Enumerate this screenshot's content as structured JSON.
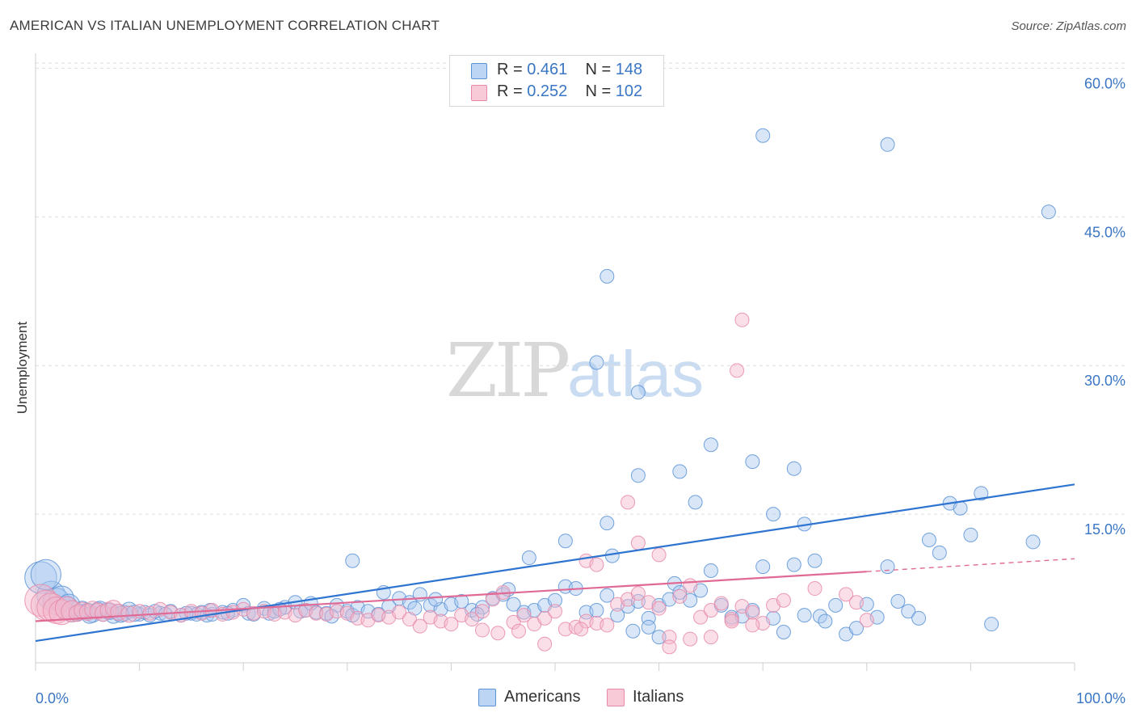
{
  "title": "AMERICAN VS ITALIAN UNEMPLOYMENT CORRELATION CHART",
  "source": "Source: ZipAtlas.com",
  "watermark": {
    "zip": "ZIP",
    "atlas": "atlas"
  },
  "legend": {
    "rows": [
      {
        "r_label": "R =",
        "r_value": "0.461",
        "n_label": "N =",
        "n_value": "148"
      },
      {
        "r_label": "R =",
        "r_value": "0.252",
        "n_label": "N =",
        "n_value": "102"
      }
    ]
  },
  "bottom_legend": [
    "Americans",
    "Italians"
  ],
  "colors": {
    "americans_fill": "#a9c8f0",
    "americans_stroke": "#5b93d6",
    "americans_line": "#2f74d0",
    "italians_fill": "#f5b8cb",
    "italians_stroke": "#e889a8",
    "italians_line": "#e06a96",
    "grid": "#dcdcdc",
    "axis_label": "#3a76c4"
  },
  "chart_data": {
    "type": "scatter",
    "title": "AMERICAN VS ITALIAN UNEMPLOYMENT CORRELATION CHART",
    "xlabel": "",
    "ylabel": "Unemployment",
    "xlim": [
      0,
      100
    ],
    "ylim": [
      0,
      61.5
    ],
    "x_tick_labels": [
      "0.0%",
      "100.0%"
    ],
    "y_ticks": [
      15,
      30,
      45,
      60
    ],
    "y_tick_labels": [
      "15.0%",
      "30.0%",
      "45.0%",
      "60.0%"
    ],
    "grid": "horizontal dashed",
    "series": [
      {
        "name": "Americans",
        "R": 0.461,
        "N": 148,
        "trend": {
          "x0": 0,
          "y0": 2.2,
          "x1": 100,
          "y1": 18.0
        },
        "points": [
          [
            0.5,
            8.6
          ],
          [
            1.5,
            6.8
          ],
          [
            2,
            6.2
          ],
          [
            3,
            5.6
          ],
          [
            3.5,
            5.2
          ],
          [
            4,
            5.0
          ],
          [
            4.5,
            5.4
          ],
          [
            5,
            5.2
          ],
          [
            5.5,
            4.9
          ],
          [
            6,
            5.3
          ],
          [
            6.5,
            5.0
          ],
          [
            7,
            5.2
          ],
          [
            7.5,
            4.8
          ],
          [
            8,
            5.1
          ],
          [
            8.5,
            5.0
          ],
          [
            9,
            5.3
          ],
          [
            10,
            4.9
          ],
          [
            10.5,
            5.1
          ],
          [
            11,
            4.8
          ],
          [
            12,
            5.0
          ],
          [
            13,
            5.2
          ],
          [
            14,
            4.8
          ],
          [
            15,
            5.0
          ],
          [
            15.5,
            4.9
          ],
          [
            16,
            5.1
          ],
          [
            16.5,
            4.8
          ],
          [
            17,
            4.9
          ],
          [
            18,
            5.1
          ],
          [
            19,
            5.3
          ],
          [
            20,
            5.8
          ],
          [
            20.5,
            5.0
          ],
          [
            21,
            4.9
          ],
          [
            22,
            5.5
          ],
          [
            22.5,
            5.0
          ],
          [
            23,
            5.2
          ],
          [
            24,
            5.6
          ],
          [
            25,
            6.1
          ],
          [
            25.5,
            5.2
          ],
          [
            26,
            5.3
          ],
          [
            27,
            5.1
          ],
          [
            28,
            5.0
          ],
          [
            29,
            5.8
          ],
          [
            30,
            5.2
          ],
          [
            30.5,
            4.8
          ],
          [
            31,
            5.6
          ],
          [
            32,
            5.2
          ],
          [
            33,
            4.9
          ],
          [
            34,
            5.7
          ],
          [
            35,
            6.5
          ],
          [
            36,
            6.1
          ],
          [
            37,
            6.9
          ],
          [
            38,
            5.8
          ],
          [
            39,
            5.4
          ],
          [
            40,
            5.9
          ],
          [
            41,
            6.2
          ],
          [
            42,
            5.3
          ],
          [
            43,
            5.6
          ],
          [
            44,
            6.5
          ],
          [
            45,
            6.9
          ],
          [
            45.5,
            7.4
          ],
          [
            46,
            5.9
          ],
          [
            47,
            5.1
          ],
          [
            48,
            5.3
          ],
          [
            49,
            5.8
          ],
          [
            50,
            6.3
          ],
          [
            51,
            7.7
          ],
          [
            52,
            7.5
          ],
          [
            53,
            5.1
          ],
          [
            54,
            5.3
          ],
          [
            55,
            6.8
          ],
          [
            56,
            4.8
          ],
          [
            57,
            5.7
          ],
          [
            58,
            6.2
          ],
          [
            59,
            4.5
          ],
          [
            60,
            5.8
          ],
          [
            61,
            6.4
          ],
          [
            61.5,
            8.0
          ],
          [
            62,
            7.1
          ],
          [
            63,
            6.3
          ],
          [
            64,
            7.3
          ],
          [
            65,
            9.3
          ],
          [
            66,
            5.8
          ],
          [
            67,
            4.6
          ],
          [
            68,
            4.7
          ],
          [
            69,
            5.3
          ],
          [
            70,
            9.7
          ],
          [
            71,
            4.5
          ],
          [
            72,
            3.1
          ],
          [
            73,
            9.9
          ],
          [
            74,
            4.8
          ],
          [
            75,
            10.3
          ],
          [
            75.5,
            4.7
          ],
          [
            76,
            4.2
          ],
          [
            77,
            5.8
          ],
          [
            78,
            2.9
          ],
          [
            79,
            3.5
          ],
          [
            80,
            5.9
          ],
          [
            81,
            4.6
          ],
          [
            82,
            9.7
          ],
          [
            83,
            6.2
          ],
          [
            84,
            5.2
          ],
          [
            85,
            4.5
          ],
          [
            86,
            12.4
          ],
          [
            87,
            11.1
          ],
          [
            88,
            16.1
          ],
          [
            89,
            15.6
          ],
          [
            90,
            12.9
          ],
          [
            91,
            17.1
          ],
          [
            92,
            3.9
          ],
          [
            96,
            12.2
          ],
          [
            58,
            18.9
          ],
          [
            62,
            19.3
          ],
          [
            63.5,
            16.2
          ],
          [
            65,
            22.0
          ],
          [
            69,
            20.3
          ],
          [
            71,
            15.0
          ],
          [
            73,
            19.6
          ],
          [
            74,
            14.0
          ],
          [
            47.5,
            10.6
          ],
          [
            55,
            14.1
          ],
          [
            51,
            12.3
          ],
          [
            55.5,
            10.8
          ],
          [
            57.5,
            3.2
          ],
          [
            59,
            3.6
          ],
          [
            60,
            2.6
          ],
          [
            70,
            53.2
          ],
          [
            82,
            52.3
          ],
          [
            97.5,
            45.5
          ],
          [
            55,
            39.0
          ],
          [
            54,
            30.3
          ],
          [
            58,
            27.3
          ],
          [
            30.5,
            10.3
          ],
          [
            1,
            8.9
          ],
          [
            2.5,
            6.5
          ],
          [
            3.2,
            5.8
          ],
          [
            4.2,
            5.1
          ],
          [
            5.2,
            4.8
          ],
          [
            6.2,
            5.4
          ],
          [
            7.2,
            5.2
          ],
          [
            8.2,
            4.9
          ],
          [
            9.5,
            5.0
          ],
          [
            11.5,
            5.2
          ],
          [
            12.5,
            4.9
          ],
          [
            14.5,
            5.0
          ],
          [
            16.8,
            5.3
          ],
          [
            18.5,
            5.0
          ],
          [
            23.5,
            5.4
          ],
          [
            26.5,
            6.0
          ],
          [
            28.5,
            4.7
          ],
          [
            33.5,
            7.1
          ],
          [
            36.5,
            5.5
          ],
          [
            38.5,
            6.4
          ],
          [
            42.5,
            4.9
          ]
        ],
        "sizes_note": "large bubbles near x<5"
      },
      {
        "name": "Italians",
        "R": 0.252,
        "N": 102,
        "trend": {
          "x0": 0,
          "y0": 4.2,
          "x1": 80,
          "y1": 9.2,
          "dashed_to_x": 100,
          "dashed_to_y": 10.5
        },
        "points": [
          [
            0.5,
            6.3
          ],
          [
            1,
            5.8
          ],
          [
            1.5,
            5.6
          ],
          [
            2,
            5.3
          ],
          [
            2.5,
            5.1
          ],
          [
            3,
            5.5
          ],
          [
            3.5,
            5.2
          ],
          [
            4,
            5.0
          ],
          [
            4.5,
            5.3
          ],
          [
            5,
            5.1
          ],
          [
            5.5,
            5.4
          ],
          [
            6,
            5.2
          ],
          [
            6.5,
            5.0
          ],
          [
            7,
            5.3
          ],
          [
            7.5,
            5.5
          ],
          [
            8,
            5.1
          ],
          [
            9,
            4.9
          ],
          [
            10,
            5.2
          ],
          [
            11,
            5.0
          ],
          [
            12,
            5.4
          ],
          [
            13,
            5.1
          ],
          [
            14,
            4.8
          ],
          [
            15,
            5.2
          ],
          [
            16,
            5.0
          ],
          [
            17,
            5.3
          ],
          [
            18,
            4.9
          ],
          [
            19,
            5.1
          ],
          [
            20,
            5.4
          ],
          [
            21,
            5.0
          ],
          [
            22,
            5.2
          ],
          [
            23,
            4.9
          ],
          [
            24,
            5.1
          ],
          [
            25,
            4.8
          ],
          [
            26,
            5.3
          ],
          [
            27,
            5.0
          ],
          [
            28,
            4.9
          ],
          [
            29,
            5.2
          ],
          [
            30,
            5.0
          ],
          [
            31,
            4.5
          ],
          [
            32,
            4.3
          ],
          [
            33,
            4.8
          ],
          [
            34,
            4.6
          ],
          [
            35,
            5.1
          ],
          [
            36,
            4.4
          ],
          [
            37,
            3.7
          ],
          [
            38,
            4.6
          ],
          [
            39,
            4.2
          ],
          [
            40,
            3.9
          ],
          [
            41,
            4.8
          ],
          [
            42,
            4.4
          ],
          [
            43,
            5.2
          ],
          [
            44,
            6.4
          ],
          [
            45,
            7.1
          ],
          [
            46,
            4.1
          ],
          [
            47,
            4.8
          ],
          [
            48,
            3.9
          ],
          [
            49,
            4.5
          ],
          [
            50,
            5.2
          ],
          [
            51,
            3.4
          ],
          [
            52,
            3.6
          ],
          [
            53,
            4.2
          ],
          [
            54,
            4.0
          ],
          [
            55,
            3.8
          ],
          [
            56,
            5.9
          ],
          [
            57,
            6.4
          ],
          [
            58,
            7.0
          ],
          [
            59,
            6.1
          ],
          [
            60,
            5.5
          ],
          [
            61,
            2.6
          ],
          [
            62,
            6.7
          ],
          [
            63,
            7.8
          ],
          [
            64,
            4.6
          ],
          [
            65,
            5.3
          ],
          [
            66,
            6.0
          ],
          [
            67,
            4.4
          ],
          [
            68,
            5.7
          ],
          [
            69,
            5.1
          ],
          [
            70,
            4.0
          ],
          [
            71,
            5.8
          ],
          [
            72,
            6.3
          ],
          [
            53,
            10.3
          ],
          [
            54,
            9.9
          ],
          [
            57,
            16.2
          ],
          [
            58,
            12.1
          ],
          [
            60,
            10.9
          ],
          [
            61,
            1.6
          ],
          [
            63,
            2.4
          ],
          [
            65,
            2.6
          ],
          [
            67,
            4.2
          ],
          [
            69,
            3.8
          ],
          [
            75,
            7.5
          ],
          [
            78,
            6.9
          ],
          [
            79,
            6.1
          ],
          [
            80,
            4.3
          ],
          [
            68,
            34.6
          ],
          [
            67.5,
            29.5
          ],
          [
            49,
            1.9
          ],
          [
            46.5,
            3.2
          ],
          [
            52.5,
            3.4
          ],
          [
            44.5,
            3.0
          ],
          [
            43,
            3.3
          ]
        ]
      }
    ]
  }
}
